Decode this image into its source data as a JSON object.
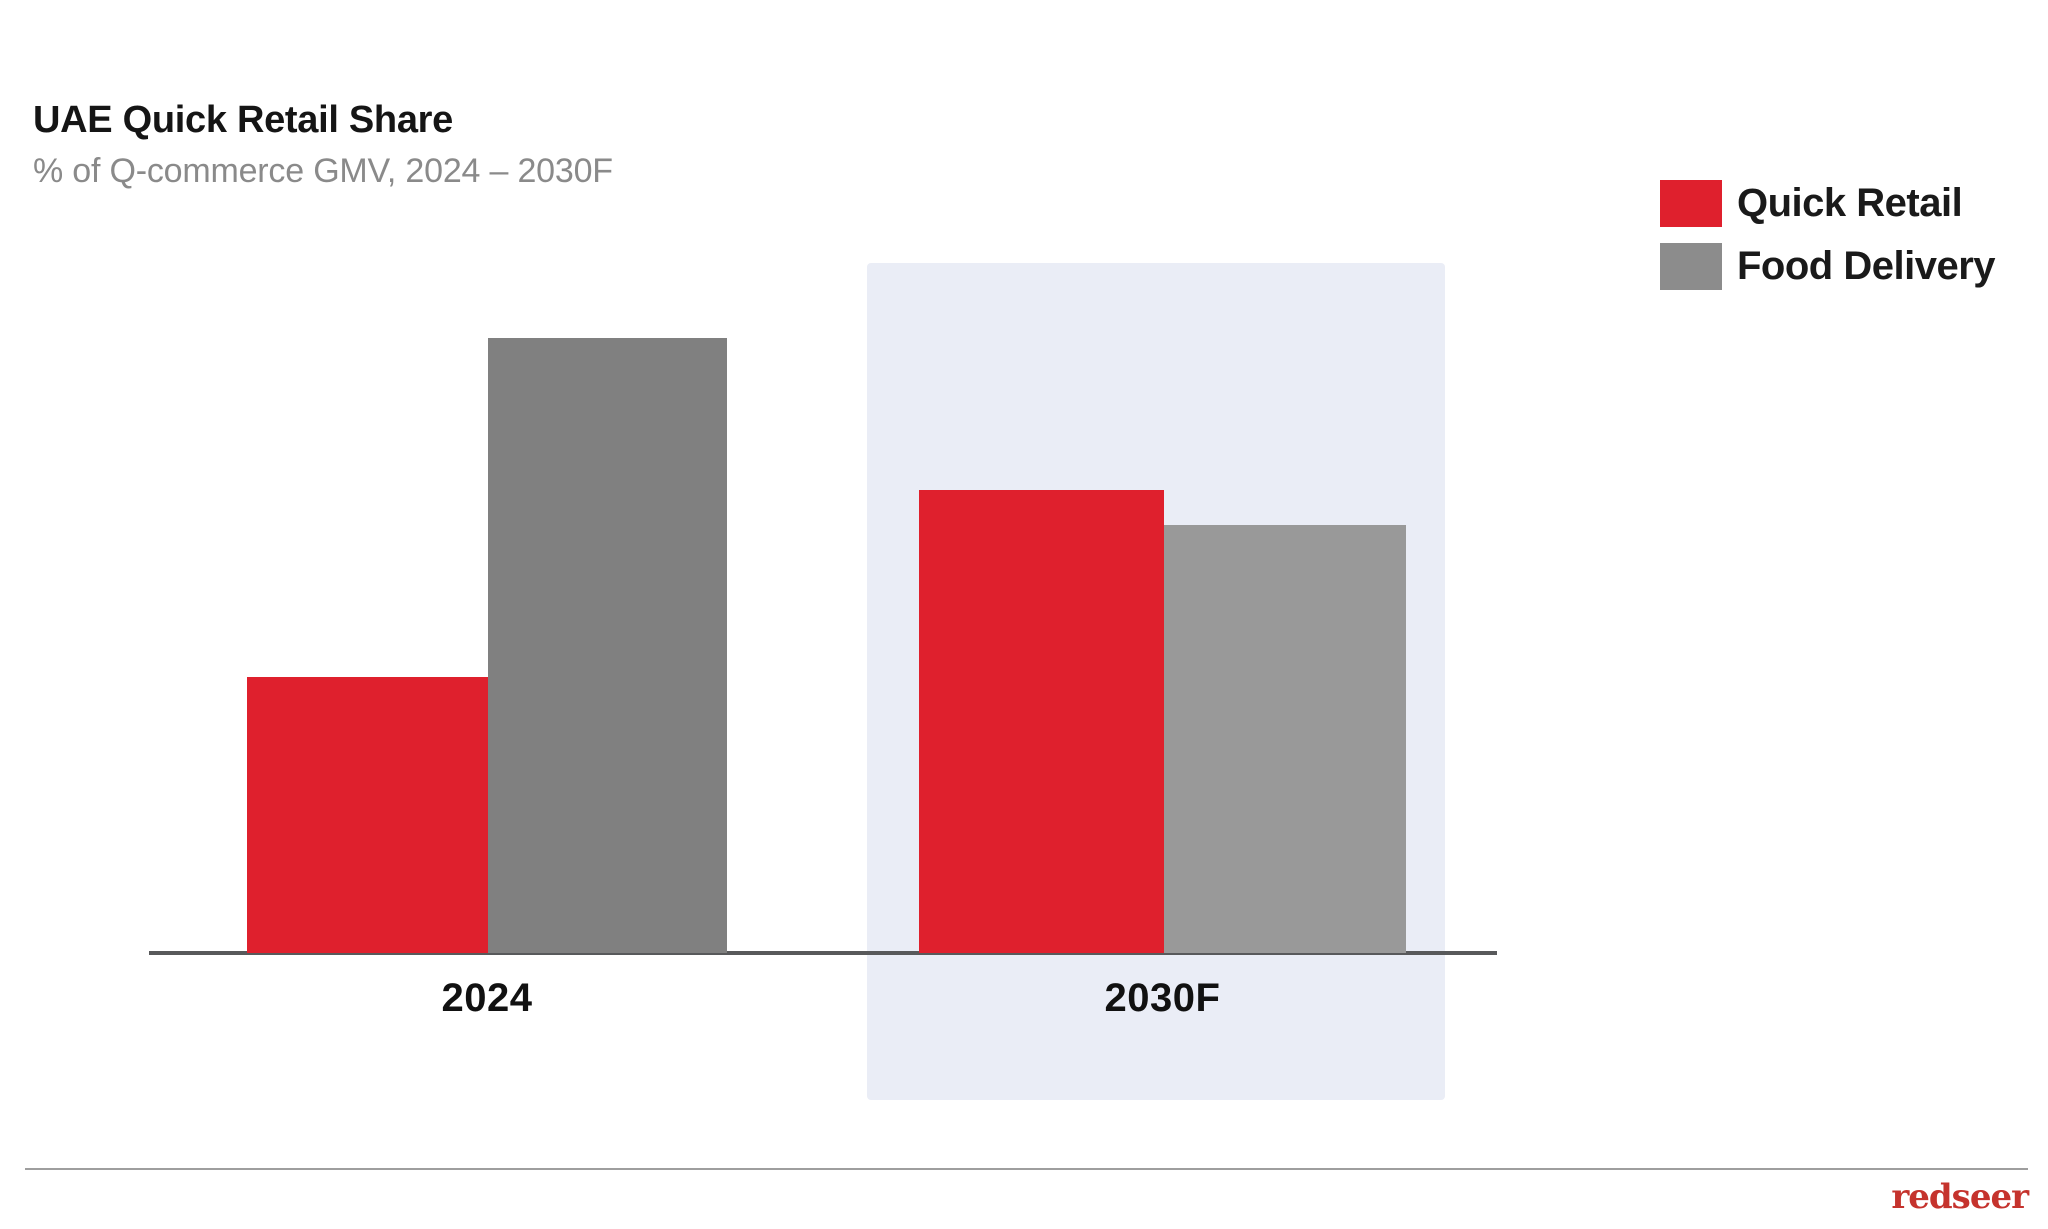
{
  "header": {
    "title": "UAE Quick Retail Share",
    "subtitle": "% of Q-commerce GMV, 2024 – 2030F"
  },
  "legend": {
    "position": "top-right",
    "items": [
      {
        "label": "Quick Retail",
        "color": "#DF202D"
      },
      {
        "label": "Food Delivery",
        "color": "#8C8C8C"
      }
    ]
  },
  "chart_data": {
    "type": "bar",
    "title": "UAE Quick Retail Share",
    "xlabel": "",
    "ylabel": "% of Q-commerce GMV",
    "categories": [
      "2024",
      "2030F"
    ],
    "series": [
      {
        "name": "Quick Retail",
        "values": [
          31,
          52
        ],
        "colors": [
          "#DF202D",
          "#DF202D"
        ]
      },
      {
        "name": "Food Delivery",
        "values": [
          69,
          48
        ],
        "colors": [
          "#808080",
          "#999999"
        ]
      }
    ],
    "ylim": [
      0,
      100
    ],
    "unit": "%",
    "grid": false,
    "value_labels_shown": false,
    "y_axis_shown": false,
    "legend_position": "top-right",
    "highlighted_category": "2030F",
    "highlight_color": "#EAEDF6"
  },
  "footer": {
    "logo_text": "redseer",
    "logo_color": "#C5332D"
  },
  "colors": {
    "accent_red": "#DF202D",
    "bar_gray_2024": "#808080",
    "bar_gray_2030f": "#999999",
    "forecast_highlight": "#EAEDF6",
    "axis_line": "#58595B",
    "divider": "#9E9E9E",
    "title_text": "#151515",
    "subtitle_text": "#8A8A8A"
  }
}
